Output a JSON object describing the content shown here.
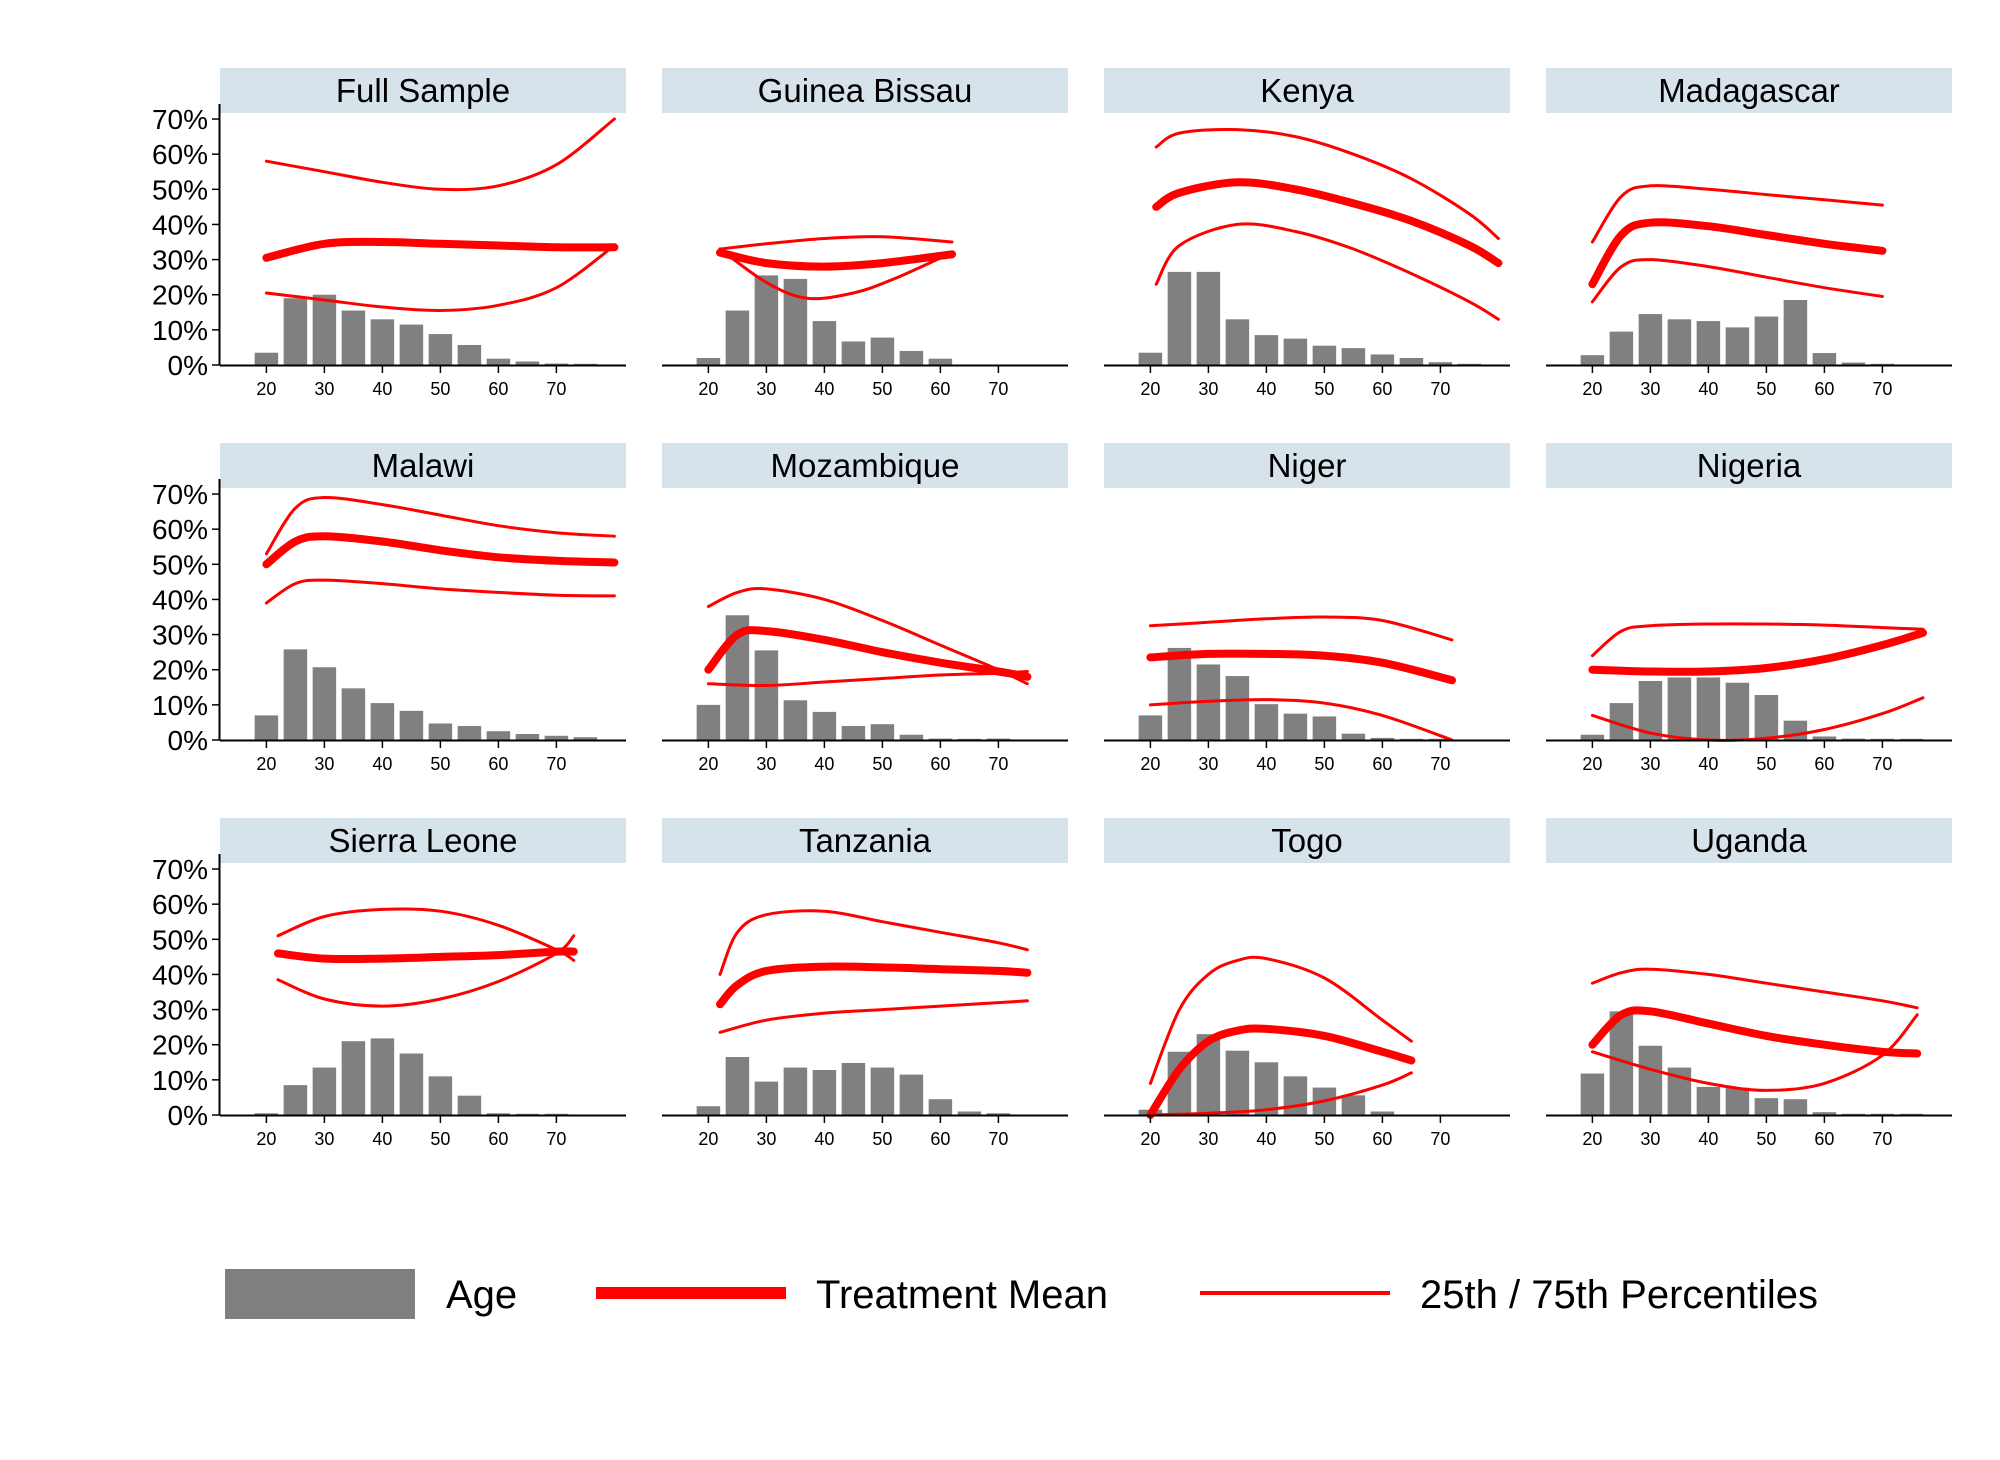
{
  "colors": {
    "bar": "#808080",
    "mean": "#ff0000",
    "percentile": "#ff0000",
    "strip": "#d6e3ea",
    "axis": "#000000"
  },
  "chart_data": {
    "type": "bar",
    "ylim": [
      0,
      0.72
    ],
    "xlim": [
      12,
      82
    ],
    "yticks": [
      0,
      0.1,
      0.2,
      0.3,
      0.4,
      0.5,
      0.6,
      0.7
    ],
    "ytick_labels": [
      "0%",
      "10%",
      "20%",
      "30%",
      "40%",
      "50%",
      "60%",
      "70%"
    ],
    "xticks": [
      20,
      30,
      40,
      50,
      60,
      70
    ],
    "xtick_labels": [
      "20",
      "30",
      "40",
      "50",
      "60",
      "70"
    ],
    "bar_x": [
      20,
      25,
      30,
      35,
      40,
      45,
      50,
      55,
      60,
      65,
      70,
      75
    ],
    "grid": false,
    "legend": {
      "position": "bottom",
      "entries": [
        {
          "label": "Age",
          "kind": "bar"
        },
        {
          "label": "Treatment Mean",
          "kind": "mean"
        },
        {
          "label": "25th / 75th Percentiles",
          "kind": "percentile"
        }
      ]
    },
    "panels": [
      {
        "title": "Full Sample",
        "bars": [
          0.035,
          0.19,
          0.2,
          0.155,
          0.13,
          0.115,
          0.088,
          0.057,
          0.018,
          0.01,
          0.004,
          0.002
        ],
        "mean": {
          "x": [
            20,
            30,
            40,
            50,
            60,
            70,
            80
          ],
          "y": [
            0.305,
            0.345,
            0.35,
            0.345,
            0.34,
            0.335,
            0.335
          ]
        },
        "p25": {
          "x": [
            20,
            30,
            40,
            50,
            60,
            70,
            80
          ],
          "y": [
            0.205,
            0.185,
            0.165,
            0.155,
            0.17,
            0.22,
            0.34
          ]
        },
        "p75": {
          "x": [
            20,
            30,
            40,
            50,
            60,
            70,
            80
          ],
          "y": [
            0.58,
            0.55,
            0.52,
            0.5,
            0.51,
            0.57,
            0.7
          ]
        }
      },
      {
        "title": "Guinea Bissau",
        "bars": [
          0.02,
          0.155,
          0.255,
          0.245,
          0.125,
          0.067,
          0.078,
          0.04,
          0.018,
          0,
          0,
          0
        ],
        "mean": {
          "x": [
            22,
            30,
            40,
            50,
            62
          ],
          "y": [
            0.32,
            0.29,
            0.28,
            0.29,
            0.315
          ]
        },
        "p25": {
          "x": [
            22,
            30,
            37,
            45,
            52,
            62
          ],
          "y": [
            0.33,
            0.235,
            0.19,
            0.205,
            0.245,
            0.32
          ]
        },
        "p75": {
          "x": [
            22,
            30,
            40,
            50,
            62
          ],
          "y": [
            0.33,
            0.345,
            0.36,
            0.365,
            0.35
          ]
        }
      },
      {
        "title": "Kenya",
        "bars": [
          0.035,
          0.265,
          0.265,
          0.13,
          0.085,
          0.075,
          0.055,
          0.048,
          0.03,
          0.02,
          0.008,
          0.003
        ],
        "mean": {
          "x": [
            21,
            25,
            35,
            45,
            55,
            65,
            75,
            80
          ],
          "y": [
            0.45,
            0.49,
            0.52,
            0.5,
            0.46,
            0.41,
            0.34,
            0.29
          ]
        },
        "p25": {
          "x": [
            21,
            25,
            35,
            45,
            55,
            65,
            75,
            80
          ],
          "y": [
            0.23,
            0.34,
            0.4,
            0.38,
            0.33,
            0.26,
            0.18,
            0.13
          ]
        },
        "p75": {
          "x": [
            21,
            25,
            35,
            45,
            55,
            65,
            75,
            80
          ],
          "y": [
            0.62,
            0.66,
            0.67,
            0.65,
            0.6,
            0.53,
            0.43,
            0.36
          ]
        }
      },
      {
        "title": "Madagascar",
        "bars": [
          0.028,
          0.095,
          0.145,
          0.13,
          0.125,
          0.107,
          0.138,
          0.185,
          0.034,
          0.007,
          0.003,
          0
        ],
        "mean": {
          "x": [
            20,
            25,
            30,
            40,
            50,
            60,
            70
          ],
          "y": [
            0.23,
            0.37,
            0.405,
            0.395,
            0.37,
            0.345,
            0.325
          ]
        },
        "p25": {
          "x": [
            20,
            25,
            30,
            40,
            50,
            60,
            70
          ],
          "y": [
            0.18,
            0.28,
            0.3,
            0.28,
            0.25,
            0.22,
            0.195
          ]
        },
        "p75": {
          "x": [
            20,
            25,
            30,
            40,
            50,
            60,
            70
          ],
          "y": [
            0.35,
            0.48,
            0.51,
            0.5,
            0.485,
            0.47,
            0.455
          ]
        }
      },
      {
        "title": "Malawi",
        "bars": [
          0.07,
          0.258,
          0.207,
          0.147,
          0.105,
          0.083,
          0.047,
          0.04,
          0.025,
          0.017,
          0.012,
          0.008
        ],
        "mean": {
          "x": [
            20,
            25,
            30,
            40,
            50,
            60,
            70,
            80
          ],
          "y": [
            0.5,
            0.565,
            0.58,
            0.565,
            0.54,
            0.52,
            0.51,
            0.505
          ]
        },
        "p25": {
          "x": [
            20,
            25,
            30,
            40,
            50,
            60,
            70,
            80
          ],
          "y": [
            0.39,
            0.445,
            0.455,
            0.445,
            0.43,
            0.42,
            0.412,
            0.41
          ]
        },
        "p75": {
          "x": [
            20,
            25,
            30,
            40,
            50,
            60,
            70,
            80
          ],
          "y": [
            0.53,
            0.66,
            0.69,
            0.67,
            0.64,
            0.61,
            0.59,
            0.58
          ]
        }
      },
      {
        "title": "Mozambique",
        "bars": [
          0.1,
          0.355,
          0.255,
          0.113,
          0.08,
          0.04,
          0.045,
          0.015,
          0.004,
          0.002,
          0.004,
          0
        ],
        "mean": {
          "x": [
            20,
            25,
            30,
            40,
            50,
            60,
            70,
            75
          ],
          "y": [
            0.2,
            0.3,
            0.31,
            0.285,
            0.25,
            0.22,
            0.195,
            0.18
          ]
        },
        "p25": {
          "x": [
            20,
            30,
            40,
            50,
            60,
            70,
            75
          ],
          "y": [
            0.16,
            0.155,
            0.165,
            0.175,
            0.185,
            0.19,
            0.195
          ]
        },
        "p75": {
          "x": [
            20,
            25,
            30,
            40,
            50,
            60,
            70,
            75
          ],
          "y": [
            0.38,
            0.42,
            0.43,
            0.4,
            0.34,
            0.27,
            0.2,
            0.16
          ]
        }
      },
      {
        "title": "Niger",
        "bars": [
          0.07,
          0.262,
          0.215,
          0.182,
          0.102,
          0.075,
          0.067,
          0.018,
          0.006,
          0.002,
          0.002,
          0
        ],
        "mean": {
          "x": [
            20,
            30,
            40,
            50,
            60,
            72
          ],
          "y": [
            0.235,
            0.245,
            0.245,
            0.24,
            0.22,
            0.17
          ]
        },
        "p25": {
          "x": [
            20,
            30,
            40,
            50,
            60,
            72
          ],
          "y": [
            0.1,
            0.11,
            0.115,
            0.105,
            0.07,
            0.0
          ]
        },
        "p75": {
          "x": [
            20,
            30,
            40,
            50,
            60,
            72
          ],
          "y": [
            0.325,
            0.335,
            0.345,
            0.35,
            0.34,
            0.285
          ]
        }
      },
      {
        "title": "Nigeria",
        "bars": [
          0.015,
          0.105,
          0.168,
          0.178,
          0.178,
          0.163,
          0.128,
          0.055,
          0.01,
          0.004,
          0.002,
          0.002
        ],
        "mean": {
          "x": [
            20,
            30,
            40,
            50,
            60,
            70,
            77
          ],
          "y": [
            0.2,
            0.195,
            0.195,
            0.205,
            0.23,
            0.27,
            0.305
          ]
        },
        "p25": {
          "x": [
            20,
            30,
            40,
            50,
            60,
            70,
            77
          ],
          "y": [
            0.07,
            0.02,
            0.0,
            0.005,
            0.03,
            0.075,
            0.12
          ]
        },
        "p75": {
          "x": [
            20,
            25,
            30,
            40,
            50,
            60,
            70,
            77
          ],
          "y": [
            0.24,
            0.31,
            0.325,
            0.33,
            0.33,
            0.327,
            0.32,
            0.315
          ]
        }
      },
      {
        "title": "Sierra Leone",
        "bars": [
          0.005,
          0.085,
          0.135,
          0.21,
          0.218,
          0.175,
          0.11,
          0.055,
          0.005,
          0.003,
          0.002,
          0
        ],
        "mean": {
          "x": [
            22,
            30,
            40,
            50,
            60,
            70,
            73
          ],
          "y": [
            0.46,
            0.445,
            0.445,
            0.45,
            0.455,
            0.465,
            0.465
          ]
        },
        "p25": {
          "x": [
            22,
            30,
            40,
            50,
            60,
            70,
            73
          ],
          "y": [
            0.385,
            0.33,
            0.31,
            0.33,
            0.38,
            0.46,
            0.51
          ]
        },
        "p75": {
          "x": [
            22,
            30,
            40,
            50,
            60,
            70,
            73
          ],
          "y": [
            0.51,
            0.565,
            0.585,
            0.58,
            0.54,
            0.47,
            0.44
          ]
        }
      },
      {
        "title": "Tanzania",
        "bars": [
          0.025,
          0.165,
          0.095,
          0.135,
          0.128,
          0.148,
          0.135,
          0.115,
          0.045,
          0.01,
          0.005,
          0
        ],
        "mean": {
          "x": [
            22,
            25,
            30,
            40,
            50,
            60,
            70,
            75
          ],
          "y": [
            0.315,
            0.37,
            0.41,
            0.422,
            0.42,
            0.415,
            0.41,
            0.405
          ]
        },
        "p25": {
          "x": [
            22,
            30,
            40,
            50,
            60,
            70,
            75
          ],
          "y": [
            0.235,
            0.27,
            0.29,
            0.3,
            0.31,
            0.32,
            0.325
          ]
        },
        "p75": {
          "x": [
            22,
            25,
            30,
            40,
            50,
            60,
            70,
            75
          ],
          "y": [
            0.4,
            0.52,
            0.57,
            0.58,
            0.55,
            0.52,
            0.49,
            0.47
          ]
        }
      },
      {
        "title": "Togo",
        "bars": [
          0.015,
          0.18,
          0.23,
          0.183,
          0.15,
          0.11,
          0.078,
          0.056,
          0.01,
          0,
          0,
          0
        ],
        "mean": {
          "x": [
            20,
            25,
            30,
            35,
            40,
            50,
            60,
            65
          ],
          "y": [
            0.0,
            0.13,
            0.21,
            0.24,
            0.245,
            0.225,
            0.18,
            0.155
          ]
        },
        "p25": {
          "x": [
            20,
            30,
            40,
            50,
            60,
            65
          ],
          "y": [
            0.0,
            0.005,
            0.015,
            0.04,
            0.085,
            0.12
          ]
        },
        "p75": {
          "x": [
            20,
            25,
            30,
            35,
            40,
            50,
            60,
            65
          ],
          "y": [
            0.09,
            0.3,
            0.4,
            0.44,
            0.445,
            0.39,
            0.27,
            0.21
          ]
        }
      },
      {
        "title": "Uganda",
        "bars": [
          0.118,
          0.295,
          0.197,
          0.135,
          0.08,
          0.078,
          0.048,
          0.045,
          0.008,
          0.003,
          0.002,
          0.002
        ],
        "mean": {
          "x": [
            20,
            25,
            30,
            40,
            50,
            60,
            70,
            76
          ],
          "y": [
            0.2,
            0.285,
            0.295,
            0.26,
            0.225,
            0.2,
            0.18,
            0.175
          ]
        },
        "p25": {
          "x": [
            20,
            30,
            40,
            50,
            60,
            70,
            76
          ],
          "y": [
            0.18,
            0.13,
            0.09,
            0.07,
            0.09,
            0.17,
            0.285
          ]
        },
        "p75": {
          "x": [
            20,
            25,
            30,
            40,
            50,
            60,
            70,
            76
          ],
          "y": [
            0.375,
            0.405,
            0.415,
            0.4,
            0.375,
            0.35,
            0.325,
            0.305
          ]
        }
      }
    ]
  }
}
